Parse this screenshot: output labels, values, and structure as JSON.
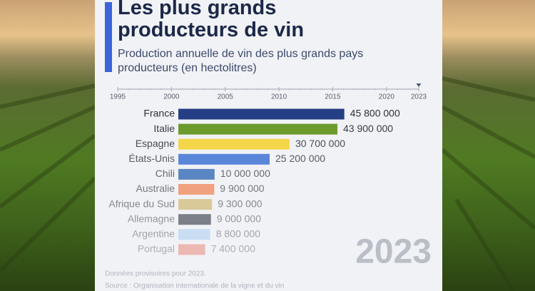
{
  "chart_data": {
    "type": "bar",
    "orientation": "horizontal",
    "title": "Les plus grands producteurs de vin",
    "subtitle": "Production annuelle de vin des plus grands pays producteurs (en hectolitres)",
    "categories": [
      "France",
      "Italie",
      "Espagne",
      "États-Unis",
      "Chili",
      "Australie",
      "Afrique du Sud",
      "Allemagne",
      "Argentine",
      "Portugal"
    ],
    "values": [
      45800000,
      43900000,
      30700000,
      25200000,
      10000000,
      9900000,
      9300000,
      9000000,
      8800000,
      7400000
    ],
    "value_labels": [
      "45 800 000",
      "43 900 000",
      "30 700 000",
      "25 200 000",
      "10 000 000",
      "9 900 000",
      "9 300 000",
      "9 000 000",
      "8 800 000",
      "7 400 000"
    ],
    "colors": [
      "#253f85",
      "#6c9a2c",
      "#f4d64a",
      "#5a86da",
      "#5b86c4",
      "#f0a27e",
      "#d9c998",
      "#7b7f88",
      "#c9ddf3",
      "#ecb8b2"
    ],
    "xlim": [
      0,
      50000000
    ],
    "timeline": {
      "xlim": [
        1995,
        2023
      ],
      "xticks": [
        1995,
        2000,
        2005,
        2010,
        2015,
        2020,
        2023
      ],
      "selected": 2023
    },
    "notes": [
      "Données provisoires pour 2023.",
      "Source : Organisation internationale de la vigne et du vin"
    ]
  }
}
